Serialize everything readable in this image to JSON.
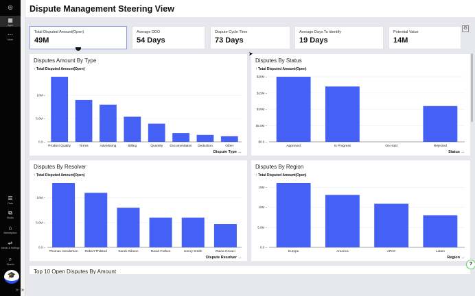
{
  "sidebar": {
    "items": [
      {
        "label": "",
        "icon": "logo-icon"
      },
      {
        "label": "Apps",
        "icon": "grid-icon"
      },
      {
        "label": "More",
        "icon": "more-icon"
      },
      {
        "label": "Data",
        "icon": "database-icon"
      },
      {
        "label": "Studio",
        "icon": "studio-icon"
      },
      {
        "label": "Marketplace",
        "icon": "store-icon"
      },
      {
        "label": "Admin & Settings",
        "icon": "sliders-icon"
      },
      {
        "label": "Search",
        "icon": "search-icon"
      }
    ],
    "collapse": "»"
  },
  "header": {
    "title": "Dispute Management Steering View"
  },
  "kpis": [
    {
      "label": "Total Disputed Amount(Open)",
      "value": "49M"
    },
    {
      "label": "Average DDO",
      "value": "54 Days"
    },
    {
      "label": "Dispute Cycle Time",
      "value": "73 Days"
    },
    {
      "label": "Average Days To Identify",
      "value": "19 Days"
    },
    {
      "label": "Potential Value",
      "value": "14M"
    }
  ],
  "accent": "#4560f5",
  "chart_data": [
    {
      "type": "bar",
      "title": "Disputes Amount By Type",
      "ylabel": "↑ Total Disputed Amount(Open)",
      "xlabel": "Dispute Type →",
      "categories": [
        "Product Quality",
        "Terms",
        "Advertising",
        "Billing",
        "Quantity",
        "Documentation",
        "Deduction",
        "Other"
      ],
      "values": [
        14,
        9,
        8,
        5.4,
        3.9,
        1.9,
        1.5,
        1.2
      ],
      "unit": "M",
      "ylim": [
        0,
        14
      ],
      "yticks": [
        0,
        5,
        10
      ],
      "ytick_labels": [
        "0.0",
        "5.0M",
        "10M"
      ]
    },
    {
      "type": "bar",
      "title": "Disputes By Status",
      "ylabel": "↑ Total Disputed Amount(Open)",
      "xlabel": "Status →",
      "categories": [
        "Approved",
        "In Progress",
        "On Hold",
        "Rejected"
      ],
      "values": [
        20,
        17,
        0,
        11
      ],
      "unit": "M",
      "ylim": [
        0,
        20
      ],
      "yticks": [
        0,
        5,
        10,
        15,
        20
      ],
      "ytick_labels": [
        "$0.0",
        "$5.0M",
        "$10M",
        "$15M",
        "$20M"
      ]
    },
    {
      "type": "bar",
      "title": "Disputes By Resolver",
      "ylabel": "↑ Total Disputed Amount(Open)",
      "xlabel": "Dispute Resolver →",
      "categories": [
        "Thomas Henderson",
        "Robert Thilsted",
        "Sarah Gibson",
        "David Forbes",
        "Henry Smith",
        "Diana Covaci"
      ],
      "values": [
        13,
        11,
        8,
        6,
        6,
        4.7
      ],
      "unit": "M",
      "ylim": [
        0,
        13
      ],
      "yticks": [
        0,
        5,
        10
      ],
      "ytick_labels": [
        "0.0",
        "5.0M",
        "10M"
      ]
    },
    {
      "type": "bar",
      "title": "Disputes By Region",
      "ylabel": "↑ Total Disputed Amount(Open)",
      "xlabel": "Region →",
      "categories": [
        "Europe",
        "America",
        "APAC",
        "Latam"
      ],
      "values": [
        16.1,
        13.1,
        10.9,
        8
      ],
      "unit": "M",
      "ylim": [
        0,
        16.1
      ],
      "yticks": [
        0,
        5,
        10,
        15
      ],
      "ytick_labels": [
        "0.0",
        "5.0M",
        "10M",
        "15M"
      ]
    }
  ],
  "bottom_panel": {
    "title": "Top 10 Open Disputes By Amount"
  }
}
